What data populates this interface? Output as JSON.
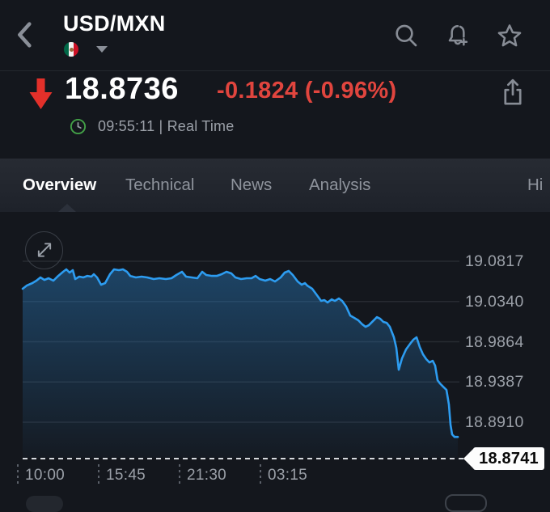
{
  "header": {
    "title": "USD/MXN",
    "flag_icon": "mexico-flag",
    "back_icon": "chevron-left",
    "dropdown_icon": "caret-down",
    "action_icons": [
      "search-icon",
      "alert-add-icon",
      "star-icon"
    ]
  },
  "quote": {
    "direction_icon": "red-down-arrow",
    "price": "18.8736",
    "change": "-0.1824 (-0.96%)",
    "change_color": "#e1453e",
    "clock_icon": "clock-green",
    "time": "09:55:11 | Real Time",
    "share_icon": "share-icon"
  },
  "tabs": [
    {
      "label": "Overview",
      "active": true
    },
    {
      "label": "Technical",
      "active": false
    },
    {
      "label": "News",
      "active": false
    },
    {
      "label": "Analysis",
      "active": false
    },
    {
      "label": "Hi",
      "active": false
    }
  ],
  "chart_data": {
    "type": "area",
    "title": "USD/MXN intraday price",
    "line_color": "#2d9cf0",
    "fill_color": "#2b86d0",
    "grid": true,
    "legend": "none",
    "y_axis": {
      "side": "right",
      "ticks": [
        {
          "label": "19.0817",
          "value": 19.0817
        },
        {
          "label": "19.0340",
          "value": 19.034
        },
        {
          "label": "18.9864",
          "value": 18.9864
        },
        {
          "label": "18.9387",
          "value": 18.9387
        },
        {
          "label": "18.8910",
          "value": 18.891
        }
      ]
    },
    "x_axis": {
      "tick_labels": [
        "10:00",
        "15:45",
        "21:30",
        "03:15"
      ]
    },
    "last_price_tag": "18.8741",
    "expand_icon": "expand-icon",
    "series": [
      {
        "name": "USD/MXN",
        "points": [
          [
            28,
            19.0491
          ],
          [
            33,
            19.0529
          ],
          [
            40,
            19.0558
          ],
          [
            45,
            19.0587
          ],
          [
            50,
            19.0625
          ],
          [
            55,
            19.0596
          ],
          [
            60,
            19.0616
          ],
          [
            66,
            19.0587
          ],
          [
            72,
            19.0644
          ],
          [
            78,
            19.0692
          ],
          [
            82,
            19.0721
          ],
          [
            86,
            19.0683
          ],
          [
            90,
            19.0712
          ],
          [
            93,
            19.0606
          ],
          [
            98,
            19.0635
          ],
          [
            103,
            19.0625
          ],
          [
            108,
            19.0644
          ],
          [
            113,
            19.0635
          ],
          [
            116,
            19.0664
          ],
          [
            120,
            19.0625
          ],
          [
            125,
            19.0539
          ],
          [
            130,
            19.0558
          ],
          [
            136,
            19.0664
          ],
          [
            141,
            19.0721
          ],
          [
            147,
            19.0712
          ],
          [
            152,
            19.0721
          ],
          [
            157,
            19.0692
          ],
          [
            161,
            19.0644
          ],
          [
            168,
            19.0625
          ],
          [
            175,
            19.0635
          ],
          [
            182,
            19.0625
          ],
          [
            190,
            19.0606
          ],
          [
            197,
            19.0616
          ],
          [
            205,
            19.0606
          ],
          [
            212,
            19.0616
          ],
          [
            218,
            19.0654
          ],
          [
            225,
            19.0692
          ],
          [
            230,
            19.0635
          ],
          [
            237,
            19.0625
          ],
          [
            244,
            19.0616
          ],
          [
            250,
            19.0692
          ],
          [
            255,
            19.0654
          ],
          [
            262,
            19.0644
          ],
          [
            268,
            19.0644
          ],
          [
            274,
            19.0664
          ],
          [
            280,
            19.0692
          ],
          [
            286,
            19.0673
          ],
          [
            291,
            19.0625
          ],
          [
            298,
            19.0606
          ],
          [
            305,
            19.0616
          ],
          [
            311,
            19.0616
          ],
          [
            316,
            19.0644
          ],
          [
            321,
            19.0606
          ],
          [
            328,
            19.0587
          ],
          [
            334,
            19.0606
          ],
          [
            340,
            19.0577
          ],
          [
            347,
            19.0625
          ],
          [
            352,
            19.0683
          ],
          [
            357,
            19.0702
          ],
          [
            362,
            19.0654
          ],
          [
            368,
            19.0577
          ],
          [
            373,
            19.0539
          ],
          [
            377,
            19.0558
          ],
          [
            380,
            19.0529
          ],
          [
            386,
            19.0491
          ],
          [
            392,
            19.0414
          ],
          [
            397,
            19.0347
          ],
          [
            401,
            19.0357
          ],
          [
            405,
            19.0328
          ],
          [
            410,
            19.0366
          ],
          [
            414,
            19.0347
          ],
          [
            419,
            19.0376
          ],
          [
            423,
            19.0347
          ],
          [
            428,
            19.028
          ],
          [
            433,
            19.0174
          ],
          [
            438,
            19.0146
          ],
          [
            443,
            19.0117
          ],
          [
            448,
            19.0069
          ],
          [
            452,
            19.004
          ],
          [
            456,
            19.0059
          ],
          [
            461,
            19.0107
          ],
          [
            466,
            19.0155
          ],
          [
            470,
            19.0136
          ],
          [
            474,
            19.0098
          ],
          [
            478,
            19.0088
          ],
          [
            482,
            19.004
          ],
          [
            487,
            18.9916
          ],
          [
            490,
            18.9791
          ],
          [
            493,
            18.9532
          ],
          [
            497,
            18.9666
          ],
          [
            502,
            18.9772
          ],
          [
            507,
            18.9839
          ],
          [
            511,
            18.9887
          ],
          [
            515,
            18.9916
          ],
          [
            519,
            18.98
          ],
          [
            523,
            18.9714
          ],
          [
            527,
            18.9657
          ],
          [
            531,
            18.9618
          ],
          [
            535,
            18.9637
          ],
          [
            538,
            18.958
          ],
          [
            541,
            18.9407
          ],
          [
            544,
            18.9369
          ],
          [
            548,
            18.933
          ],
          [
            552,
            18.9292
          ],
          [
            555,
            18.912
          ],
          [
            557,
            18.888
          ],
          [
            559,
            18.8765
          ],
          [
            562,
            18.8736
          ],
          [
            566,
            18.8736
          ]
        ]
      }
    ]
  }
}
